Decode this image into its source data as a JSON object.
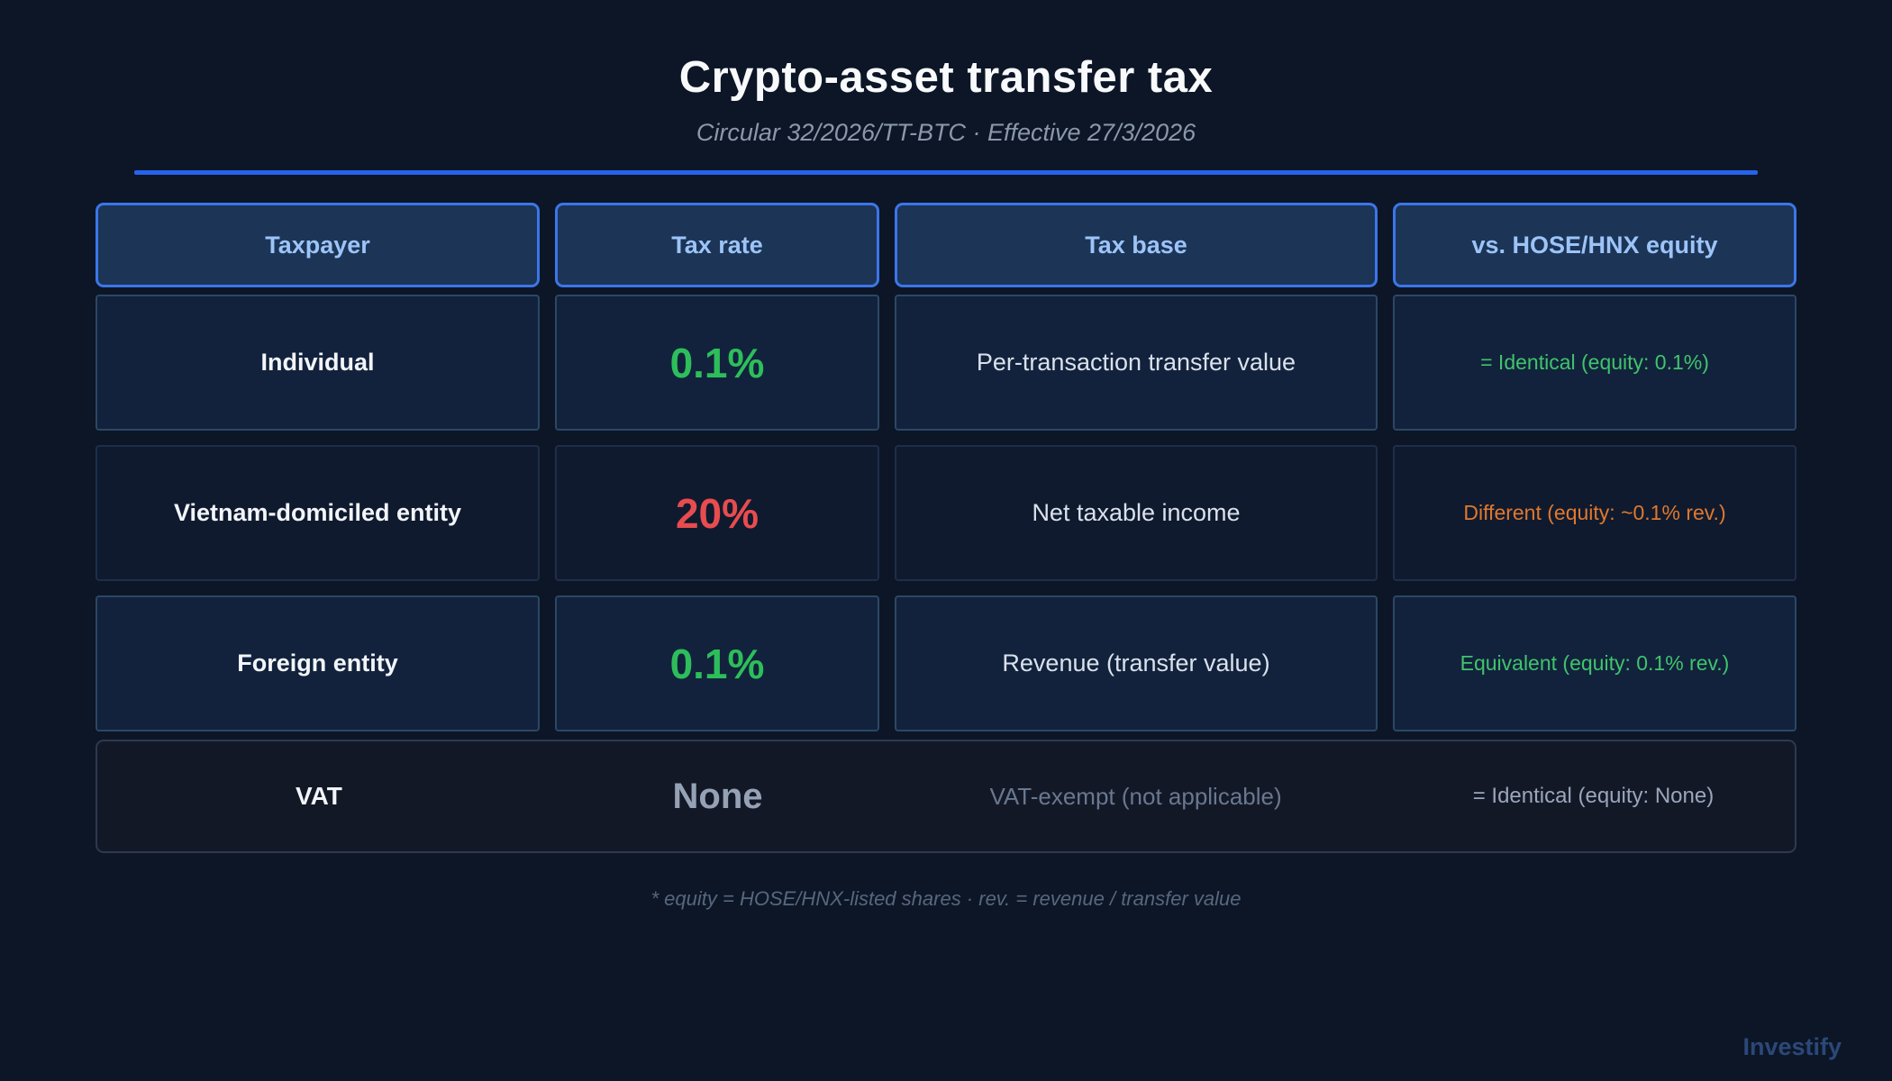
{
  "chart_data": {
    "type": "table",
    "title": "Crypto-asset transfer tax",
    "subtitle": "Circular 32/2026/TT-BTC · Effective 27/3/2026",
    "columns": [
      "Taxpayer",
      "Tax rate",
      "Tax base",
      "vs. HOSE/HNX equity"
    ],
    "rows": [
      {
        "taxpayer": "Individual",
        "rate": "0.1%",
        "rate_color": "green",
        "base": "Per-transaction transfer value",
        "comparison": "= Identical (equity: 0.1%)",
        "comparison_color": "green"
      },
      {
        "taxpayer": "Vietnam-domiciled entity",
        "rate": "20%",
        "rate_color": "red",
        "base": "Net taxable income",
        "comparison": "Different (equity: ~0.1% rev.)",
        "comparison_color": "orange"
      },
      {
        "taxpayer": "Foreign entity",
        "rate": "0.1%",
        "rate_color": "green",
        "base": "Revenue (transfer value)",
        "comparison": "Equivalent (equity: 0.1% rev.)",
        "comparison_color": "green"
      }
    ],
    "vat_row": {
      "taxpayer": "VAT",
      "rate": "None",
      "base": "VAT-exempt (not applicable)",
      "comparison": "= Identical (equity: None)"
    },
    "footnote": "* equity = HOSE/HNX-listed shares · rev. = revenue / transfer value"
  },
  "watermark": "Investify",
  "colors": {
    "background": "#0d1626",
    "accent_blue": "#2563eb",
    "header_border": "#3b76ea",
    "header_fill": "#1c3456",
    "header_text": "#9cc4f8",
    "green": "#2dbe5b",
    "red": "#e74c4f",
    "orange": "#e0782e",
    "muted_slate": "#95a2b5"
  }
}
